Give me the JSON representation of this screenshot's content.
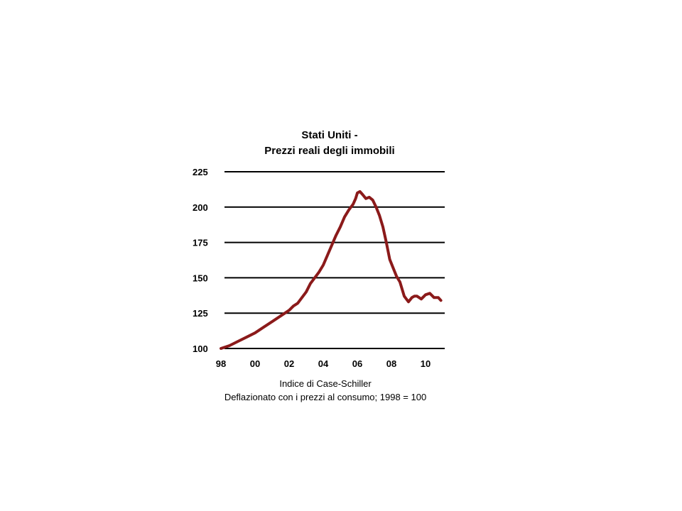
{
  "chart_data": {
    "type": "line",
    "title": "Stati Uniti -",
    "subtitle": "Prezzi reali degli immobili",
    "xlabel": "",
    "ylabel": "",
    "xlim": [
      1998,
      2011
    ],
    "ylim": [
      100,
      225
    ],
    "grid": true,
    "x_ticks": [
      {
        "value": 1998,
        "label": "98"
      },
      {
        "value": 2000,
        "label": "00"
      },
      {
        "value": 2002,
        "label": "02"
      },
      {
        "value": 2004,
        "label": "04"
      },
      {
        "value": 2006,
        "label": "06"
      },
      {
        "value": 2008,
        "label": "08"
      },
      {
        "value": 2010,
        "label": "10"
      }
    ],
    "y_ticks": [
      {
        "value": 100,
        "label": "100"
      },
      {
        "value": 125,
        "label": "125"
      },
      {
        "value": 150,
        "label": "150"
      },
      {
        "value": 175,
        "label": "175"
      },
      {
        "value": 200,
        "label": "200"
      },
      {
        "value": 225,
        "label": "225"
      }
    ],
    "notes": [
      "Indice di Case-Schiller",
      "Deflazionato con i prezzi al consumo; 1998 = 100"
    ],
    "series": [
      {
        "color": "#8b1a1a",
        "x": [
          1998.0,
          1998.5,
          1999.0,
          1999.5,
          2000.0,
          2000.5,
          2001.0,
          2001.5,
          2002.0,
          2002.25,
          2002.5,
          2002.75,
          2003.0,
          2003.25,
          2003.5,
          2003.75,
          2004.0,
          2004.25,
          2004.5,
          2004.75,
          2005.0,
          2005.25,
          2005.5,
          2005.75,
          2005.9,
          2006.0,
          2006.15,
          2006.3,
          2006.5,
          2006.7,
          2006.9,
          2007.1,
          2007.3,
          2007.5,
          2007.7,
          2007.9,
          2008.1,
          2008.3,
          2008.5,
          2008.75,
          2009.0,
          2009.2,
          2009.35,
          2009.5,
          2009.75,
          2010.0,
          2010.25,
          2010.5,
          2010.75,
          2010.9
        ],
        "y": [
          100,
          102,
          105,
          108,
          111,
          115,
          119,
          123,
          127,
          130,
          132,
          136,
          140,
          146,
          150,
          154,
          159,
          166,
          173,
          180,
          186,
          193,
          198,
          202,
          206,
          210,
          211,
          209,
          206,
          207,
          205,
          200,
          194,
          186,
          175,
          163,
          157,
          151,
          147,
          137,
          133,
          136,
          137,
          137,
          135,
          138,
          139,
          136,
          136,
          134
        ]
      }
    ]
  }
}
